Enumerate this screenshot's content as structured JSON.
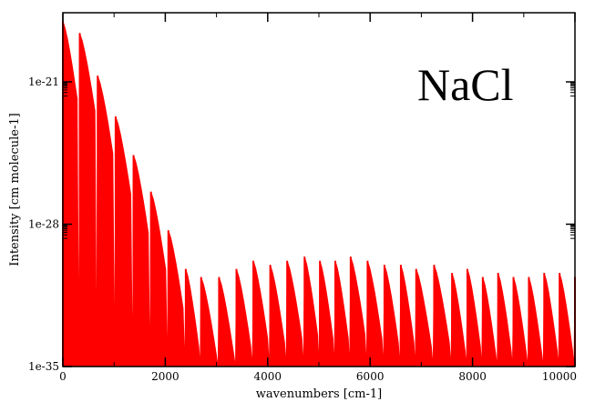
{
  "chart_data": {
    "type": "area",
    "title": "",
    "annotation": "NaCl",
    "xlabel": "wavenumbers [cm-1]",
    "ylabel": "Intensity [cm molecule-1]",
    "xlim": [
      0,
      10000
    ],
    "ylim_log10": [
      -35,
      -17.6
    ],
    "y_scale": "log",
    "grid": false,
    "fill_color": "#ff0000",
    "x_ticks": [
      0,
      2000,
      4000,
      6000,
      8000,
      10000
    ],
    "x_tick_labels": [
      "0",
      "2000",
      "4000",
      "6000",
      "8000",
      "10000"
    ],
    "y_ticks_log10": [
      -35,
      -28,
      -21
    ],
    "y_tick_labels": [
      "1e-35",
      "1e-28",
      "1e-21"
    ],
    "series": [
      {
        "peaks": [
          {
            "x": 0,
            "log10_y": -18.0
          },
          {
            "x": 330,
            "log10_y": -18.6
          },
          {
            "x": 680,
            "log10_y": -20.7
          },
          {
            "x": 1030,
            "log10_y": -22.7
          },
          {
            "x": 1380,
            "log10_y": -24.6
          },
          {
            "x": 1720,
            "log10_y": -26.4
          },
          {
            "x": 2060,
            "log10_y": -28.3
          },
          {
            "x": 2400,
            "log10_y": -30.2
          },
          {
            "x": 2700,
            "log10_y": -30.6
          },
          {
            "x": 3050,
            "log10_y": -30.6
          },
          {
            "x": 3390,
            "log10_y": -30.2
          },
          {
            "x": 3720,
            "log10_y": -29.8
          },
          {
            "x": 4050,
            "log10_y": -30.0
          },
          {
            "x": 4380,
            "log10_y": -29.8
          },
          {
            "x": 4720,
            "log10_y": -29.6
          },
          {
            "x": 5020,
            "log10_y": -29.8
          },
          {
            "x": 5320,
            "log10_y": -29.8
          },
          {
            "x": 5620,
            "log10_y": -29.6
          },
          {
            "x": 5950,
            "log10_y": -29.8
          },
          {
            "x": 6280,
            "log10_y": -30.0
          },
          {
            "x": 6600,
            "log10_y": -30.0
          },
          {
            "x": 6900,
            "log10_y": -30.2
          },
          {
            "x": 7250,
            "log10_y": -30.0
          },
          {
            "x": 7600,
            "log10_y": -30.4
          },
          {
            "x": 7900,
            "log10_y": -30.2
          },
          {
            "x": 8200,
            "log10_y": -30.6
          },
          {
            "x": 8500,
            "log10_y": -30.4
          },
          {
            "x": 8800,
            "log10_y": -30.6
          },
          {
            "x": 9100,
            "log10_y": -30.6
          },
          {
            "x": 9400,
            "log10_y": -30.4
          },
          {
            "x": 9700,
            "log10_y": -30.4
          },
          {
            "x": 10000,
            "log10_y": -30.6
          }
        ]
      }
    ]
  }
}
